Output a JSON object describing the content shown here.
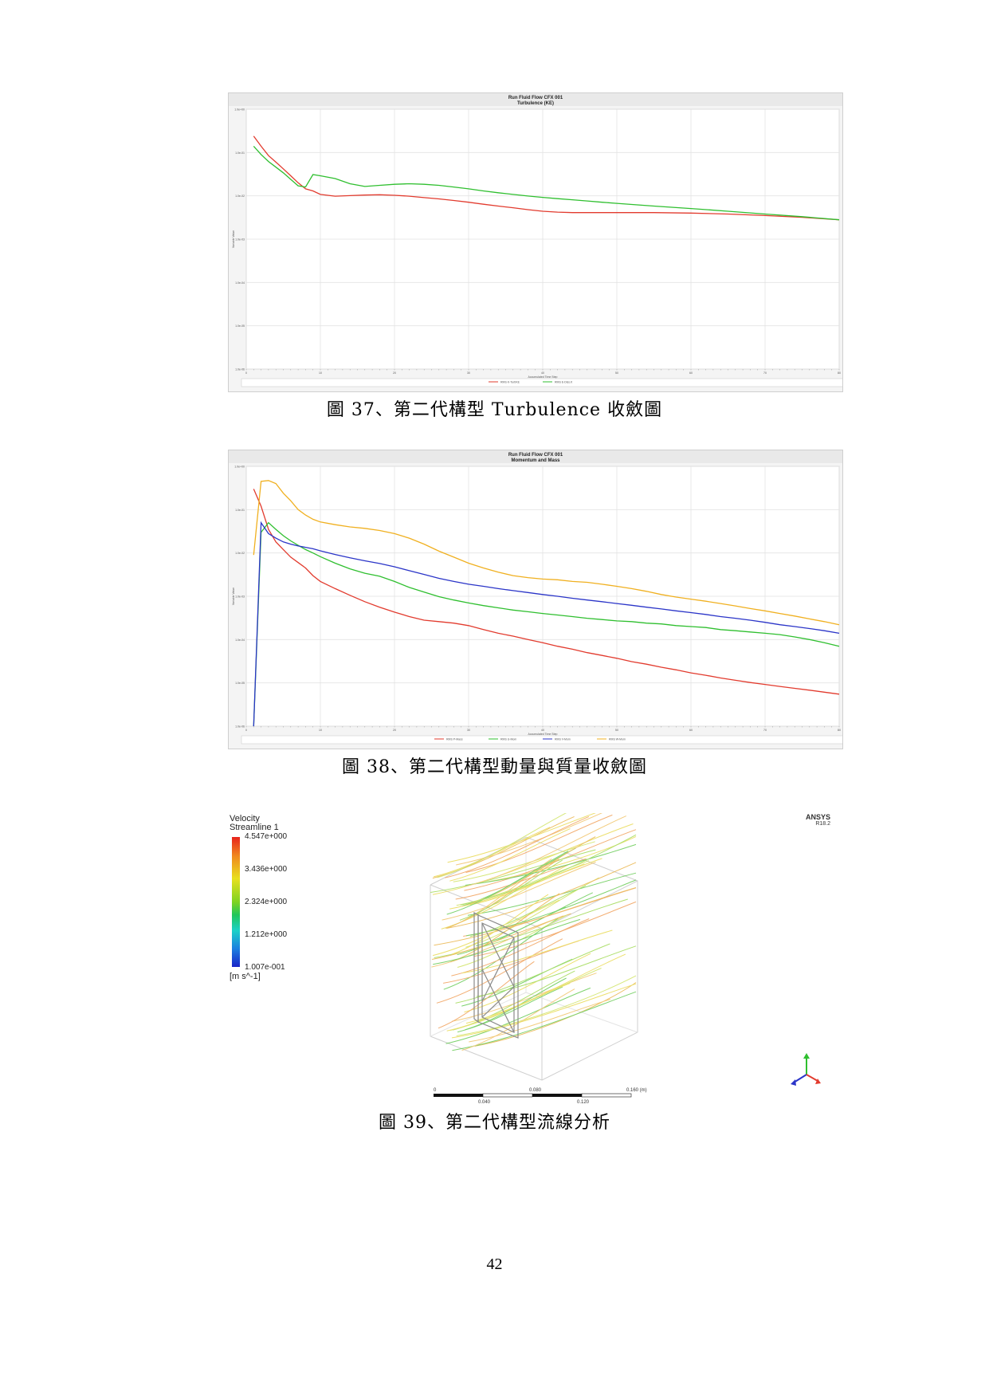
{
  "figures": [
    {
      "caption": "圖 37、第二代構型 Turbulence 收斂圖",
      "chart_data": {
        "type": "line",
        "title": "Run Fluid Flow CFX 001",
        "subtitle": "Turbulence (KE)",
        "xlabel": "Accumulated Time Step",
        "ylabel": "Variable Value",
        "ylog": true,
        "xlim": [
          0,
          80
        ],
        "ylim": [
          1e-06,
          1.0
        ],
        "xticks": [
          0,
          10,
          20,
          30,
          40,
          50,
          60,
          70,
          80
        ],
        "yticks": [
          "1.0e+00",
          "1.0e-01",
          "1.0e-02",
          "1.0e-03",
          "1.0e-04",
          "1.0e-05",
          "1.0e-06"
        ],
        "grid": true,
        "legend_position": "bottom",
        "series": [
          {
            "name": "RMS K-TurbKE",
            "color": "#e23b2e",
            "x": [
              1,
              2,
              3,
              4,
              5,
              6,
              7,
              8,
              9,
              10,
              12,
              14,
              16,
              18,
              20,
              22,
              24,
              26,
              28,
              30,
              32,
              34,
              36,
              38,
              40,
              42,
              44,
              46,
              48,
              50,
              55,
              60,
              65,
              70,
              75,
              80
            ],
            "y": [
              0.24,
              0.14,
              0.085,
              0.06,
              0.042,
              0.029,
              0.02,
              0.0145,
              0.013,
              0.0108,
              0.0098,
              0.0101,
              0.0104,
              0.0106,
              0.0103,
              0.0098,
              0.0091,
              0.0085,
              0.0078,
              0.0071,
              0.0064,
              0.0058,
              0.0053,
              0.0048,
              0.0044,
              0.0042,
              0.0041,
              0.0041,
              0.0041,
              0.0041,
              0.0041,
              0.004,
              0.0038,
              0.0035,
              0.0032,
              0.0028
            ]
          },
          {
            "name": "RMS E-Diss.K",
            "color": "#2fbf2f",
            "x": [
              1,
              2,
              3,
              4,
              5,
              6,
              7,
              8,
              9,
              10,
              12,
              14,
              16,
              18,
              20,
              22,
              24,
              26,
              28,
              30,
              32,
              34,
              36,
              38,
              40,
              42,
              44,
              46,
              48,
              50,
              55,
              60,
              65,
              70,
              75,
              80
            ],
            "y": [
              0.14,
              0.09,
              0.062,
              0.046,
              0.034,
              0.024,
              0.017,
              0.016,
              0.031,
              0.029,
              0.025,
              0.019,
              0.0165,
              0.0175,
              0.0185,
              0.019,
              0.0185,
              0.0175,
              0.016,
              0.0145,
              0.013,
              0.0118,
              0.0108,
              0.0099,
              0.0092,
              0.0086,
              0.0081,
              0.0076,
              0.0071,
              0.0067,
              0.0058,
              0.0051,
              0.0044,
              0.0038,
              0.0033,
              0.0028
            ]
          }
        ]
      }
    },
    {
      "caption": "圖 38、第二代構型動量與質量收斂圖",
      "chart_data": {
        "type": "line",
        "title": "Run Fluid Flow CFX 001",
        "subtitle": "Momentum and Mass",
        "xlabel": "Accumulated Time Step",
        "ylabel": "Variable Value",
        "ylog": true,
        "xlim": [
          0,
          80
        ],
        "ylim": [
          1e-06,
          1.0
        ],
        "xticks": [
          0,
          10,
          20,
          30,
          40,
          50,
          60,
          70,
          80
        ],
        "yticks": [
          "1.0e+00",
          "1.0e-01",
          "1.0e-02",
          "1.0e-03",
          "1.0e-04",
          "1.0e-05",
          "1.0e-06"
        ],
        "grid": true,
        "legend_position": "bottom",
        "series": [
          {
            "name": "RMS P-Mass",
            "color": "#e23b2e",
            "x": [
              1,
              2,
              3,
              4,
              5,
              6,
              7,
              8,
              9,
              10,
              12,
              14,
              16,
              18,
              20,
              22,
              24,
              26,
              28,
              30,
              32,
              34,
              36,
              38,
              40,
              42,
              44,
              46,
              48,
              50,
              52,
              54,
              56,
              58,
              60,
              62,
              64,
              66,
              68,
              70,
              72,
              74,
              76,
              78,
              80
            ],
            "y": [
              0.3,
              0.12,
              0.035,
              0.018,
              0.012,
              0.008,
              0.006,
              0.0045,
              0.003,
              0.0022,
              0.0015,
              0.00105,
              0.00075,
              0.00056,
              0.00043,
              0.00034,
              0.00028,
              0.00026,
              0.00024,
              0.00021,
              0.00017,
              0.00014,
              0.00012,
              0.0001,
              8.5e-05,
              7e-05,
              6e-05,
              5e-05,
              4.3e-05,
              3.7e-05,
              3.1e-05,
              2.7e-05,
              2.3e-05,
              2e-05,
              1.7e-05,
              1.5e-05,
              1.3e-05,
              1.15e-05,
              1.02e-05,
              9.2e-06,
              8.3e-06,
              7.5e-06,
              6.8e-06,
              6.1e-06,
              5.5e-06
            ]
          },
          {
            "name": "RMS U-Mom",
            "color": "#2fbf2f",
            "x": [
              1,
              2,
              3,
              4,
              5,
              6,
              7,
              8,
              9,
              10,
              12,
              14,
              16,
              18,
              20,
              22,
              24,
              26,
              28,
              30,
              32,
              34,
              36,
              38,
              40,
              42,
              44,
              46,
              48,
              50,
              52,
              54,
              56,
              58,
              60,
              62,
              64,
              66,
              68,
              70,
              72,
              74,
              76,
              78,
              80
            ],
            "y": [
              1e-06,
              0.03,
              0.05,
              0.035,
              0.025,
              0.019,
              0.015,
              0.012,
              0.01,
              0.0082,
              0.0058,
              0.0043,
              0.0034,
              0.0029,
              0.0022,
              0.0016,
              0.00125,
              0.00098,
              0.00082,
              0.0007,
              0.00061,
              0.00054,
              0.00048,
              0.00044,
              0.0004,
              0.00037,
              0.00034,
              0.00031,
              0.00029,
              0.00027,
              0.00026,
              0.00024,
              0.00023,
              0.00021,
              0.0002,
              0.00019,
              0.00017,
              0.00016,
              0.00015,
              0.00014,
              0.00013,
              0.000115,
              0.0001,
              8.5e-05,
              7e-05
            ]
          },
          {
            "name": "RMS V-Mom",
            "color": "#2b35c8",
            "x": [
              1,
              2,
              3,
              4,
              5,
              6,
              7,
              8,
              9,
              10,
              12,
              14,
              16,
              18,
              20,
              22,
              24,
              26,
              28,
              30,
              32,
              34,
              36,
              38,
              40,
              42,
              44,
              46,
              48,
              50,
              52,
              54,
              56,
              58,
              60,
              62,
              64,
              66,
              68,
              70,
              72,
              74,
              76,
              78,
              80
            ],
            "y": [
              1e-06,
              0.05,
              0.028,
              0.022,
              0.018,
              0.016,
              0.0145,
              0.0135,
              0.0125,
              0.0112,
              0.0092,
              0.0077,
              0.0066,
              0.0057,
              0.0048,
              0.0039,
              0.0032,
              0.0026,
              0.0022,
              0.0019,
              0.0017,
              0.0015,
              0.00135,
              0.00122,
              0.0011,
              0.001,
              0.0009,
              0.00082,
              0.00075,
              0.00068,
              0.00062,
              0.00056,
              0.00051,
              0.00046,
              0.00042,
              0.00038,
              0.00034,
              0.00031,
              0.00028,
              0.00025,
              0.00022,
              0.0002,
              0.00018,
              0.00016,
              0.00014
            ]
          },
          {
            "name": "RMS W-Mom",
            "color": "#f0b020",
            "x": [
              1,
              2,
              3,
              4,
              5,
              6,
              7,
              8,
              9,
              10,
              12,
              14,
              16,
              18,
              20,
              22,
              24,
              26,
              28,
              30,
              32,
              34,
              36,
              38,
              40,
              42,
              44,
              46,
              48,
              50,
              52,
              54,
              56,
              58,
              60,
              62,
              64,
              66,
              68,
              70,
              72,
              74,
              76,
              78,
              80
            ],
            "y": [
              0.009,
              0.45,
              0.47,
              0.4,
              0.24,
              0.16,
              0.1,
              0.075,
              0.06,
              0.052,
              0.045,
              0.04,
              0.037,
              0.033,
              0.028,
              0.022,
              0.016,
              0.011,
              0.008,
              0.0058,
              0.0045,
              0.0036,
              0.003,
              0.0027,
              0.0025,
              0.0024,
              0.0022,
              0.0021,
              0.0019,
              0.0017,
              0.0015,
              0.0013,
              0.0011,
              0.00096,
              0.00086,
              0.00077,
              0.00068,
              0.0006,
              0.00052,
              0.00046,
              0.0004,
              0.00035,
              0.0003,
              0.00026,
              0.00022
            ]
          }
        ]
      }
    }
  ],
  "streamline_figure": {
    "caption": "圖 39、第二代構型流線分析",
    "legend_title": "Velocity",
    "legend_subtitle": "Streamline 1",
    "legend_labels": [
      "4.547e+000",
      "3.436e+000",
      "2.324e+000",
      "1.212e+000",
      "1.007e-001"
    ],
    "legend_unit": "[m s^-1]",
    "logo_text": "ANSYS",
    "logo_version": "R18.2",
    "scale_ticks": [
      "0",
      "0.080",
      "0.160 (m)"
    ],
    "scale_subticks": [
      "0.040",
      "0.120"
    ]
  },
  "page_number": "42"
}
